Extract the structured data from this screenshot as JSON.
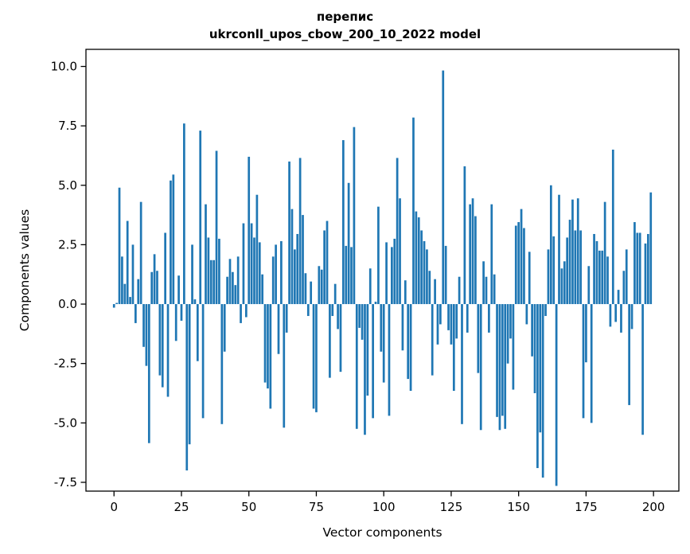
{
  "figure": {
    "title_line1": "перепис",
    "title_line2": "ukrconll_upos_cbow_200_10_2022 model",
    "xlabel": "Vector components",
    "ylabel": "Components values",
    "bar_color": "#1f77b4",
    "spine_color": "#000000",
    "text_color": "#000000",
    "background": "#ffffff"
  },
  "chart_data": {
    "type": "bar",
    "title": "перепис — ukrconll_upos_cbow_200_10_2022 model",
    "xlabel": "Vector components",
    "ylabel": "Components values",
    "legend": null,
    "grid": false,
    "n_components": 200,
    "x_ticks": [
      0,
      25,
      50,
      75,
      100,
      125,
      150,
      175,
      200
    ],
    "y_ticks": [
      10.0,
      7.5,
      5.0,
      2.5,
      0.0,
      -2.5,
      -5.0,
      -7.5
    ],
    "xlim": [
      -10.4,
      209.4
    ],
    "ylim": [
      -7.87,
      10.72
    ],
    "values": [
      -0.15,
      0.05,
      4.9,
      2.0,
      0.85,
      3.5,
      0.3,
      2.5,
      -0.8,
      1.05,
      4.3,
      -1.8,
      -2.6,
      -5.85,
      1.35,
      2.1,
      1.4,
      -3.0,
      -3.5,
      3.0,
      -3.9,
      5.2,
      5.45,
      -1.55,
      1.2,
      -0.7,
      7.6,
      -7.0,
      -5.9,
      2.5,
      0.2,
      -2.4,
      7.3,
      -4.8,
      4.2,
      2.8,
      1.85,
      1.85,
      6.45,
      2.75,
      -5.05,
      -2.0,
      1.15,
      1.9,
      1.35,
      0.8,
      2.0,
      -0.8,
      3.4,
      -0.55,
      6.2,
      3.4,
      2.8,
      4.6,
      2.6,
      1.25,
      -3.3,
      -3.55,
      -4.4,
      2.0,
      2.5,
      -2.1,
      2.65,
      -5.2,
      -1.2,
      6.0,
      4.0,
      2.3,
      2.95,
      6.15,
      3.75,
      1.3,
      -0.5,
      0.95,
      -4.4,
      -4.55,
      1.6,
      1.45,
      3.1,
      3.5,
      -3.1,
      -0.5,
      0.85,
      -1.05,
      -2.85,
      6.9,
      2.45,
      5.1,
      2.4,
      7.45,
      -5.25,
      -1.0,
      -1.5,
      -5.5,
      -3.85,
      1.5,
      -4.8,
      0.1,
      4.1,
      -2.0,
      -3.3,
      2.6,
      -4.7,
      2.4,
      2.75,
      6.15,
      4.45,
      -1.95,
      1.0,
      -3.15,
      -3.65,
      7.85,
      3.9,
      3.65,
      3.1,
      2.65,
      2.3,
      1.4,
      -3.0,
      1.05,
      -1.7,
      -0.85,
      9.83,
      2.45,
      -1.1,
      -1.7,
      -3.65,
      -1.45,
      1.15,
      -5.05,
      5.8,
      -1.2,
      4.2,
      4.45,
      3.7,
      -2.9,
      -5.3,
      1.8,
      1.15,
      -1.2,
      4.2,
      1.25,
      -4.75,
      -5.3,
      -4.7,
      -5.25,
      -2.5,
      -1.45,
      -3.6,
      3.3,
      3.45,
      4.0,
      3.2,
      -0.85,
      2.2,
      -2.2,
      -3.75,
      -6.9,
      -5.4,
      -7.3,
      -0.5,
      2.3,
      5.0,
      2.85,
      -7.65,
      4.6,
      1.5,
      1.8,
      2.8,
      3.55,
      4.4,
      3.1,
      4.45,
      3.1,
      -4.8,
      -2.45,
      1.6,
      -5.0,
      2.95,
      2.65,
      2.25,
      2.25,
      4.3,
      2.0,
      -0.95,
      6.5,
      -0.75,
      0.6,
      -1.2,
      1.4,
      2.3,
      -4.25,
      -1.05,
      3.45,
      3.0,
      3.0,
      -5.5,
      2.55,
      2.95,
      4.7
    ]
  }
}
